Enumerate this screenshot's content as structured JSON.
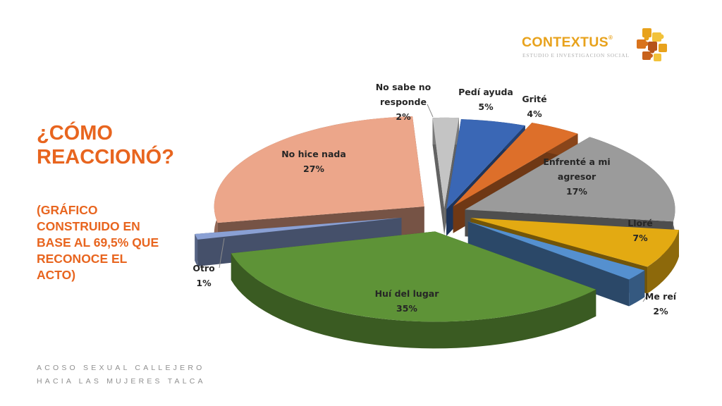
{
  "slide": {
    "title": "¿CÓMO REACCIONÓ?",
    "subtitle": "(GRÁFICO CONSTRUIDO EN BASE AL 69,5% QUE RECONOCE EL ACTO)",
    "footer_line1": "ACOSO SEXUAL CALLEJERO",
    "footer_line2": "HACIA LAS MUJERES TALCA"
  },
  "logo": {
    "name": "CONTEXTUS",
    "registered": "®",
    "tagline": "ESTUDIO E INVESTIGACION SOCIAL",
    "icon": "puzzle-pieces-icon"
  },
  "chart_data": {
    "type": "pie",
    "style": "3d-exploded",
    "slices": [
      {
        "label": "Pedí ayuda",
        "value": 5,
        "display": "5%",
        "color": "#3a67b5"
      },
      {
        "label": "Grité",
        "value": 4,
        "display": "4%",
        "color": "#dd6f2a"
      },
      {
        "label": "Enfrenté a mi agresor",
        "value": 17,
        "display": "17%",
        "color": "#9b9b9b"
      },
      {
        "label": "Lloré",
        "value": 7,
        "display": "7%",
        "color": "#e3aa12"
      },
      {
        "label": "Me reí",
        "value": 2,
        "display": "2%",
        "color": "#5590cf"
      },
      {
        "label": "Huí del lugar",
        "value": 35,
        "display": "35%",
        "color": "#5e9337"
      },
      {
        "label": "Otro",
        "value": 1,
        "display": "1%",
        "color": "#8aa0d4"
      },
      {
        "label": "No hice nada",
        "value": 27,
        "display": "27%",
        "color": "#eca68a"
      },
      {
        "label": "No sabe no responde",
        "value": 2,
        "display": "2%",
        "color": "#c4c4c4"
      }
    ]
  }
}
